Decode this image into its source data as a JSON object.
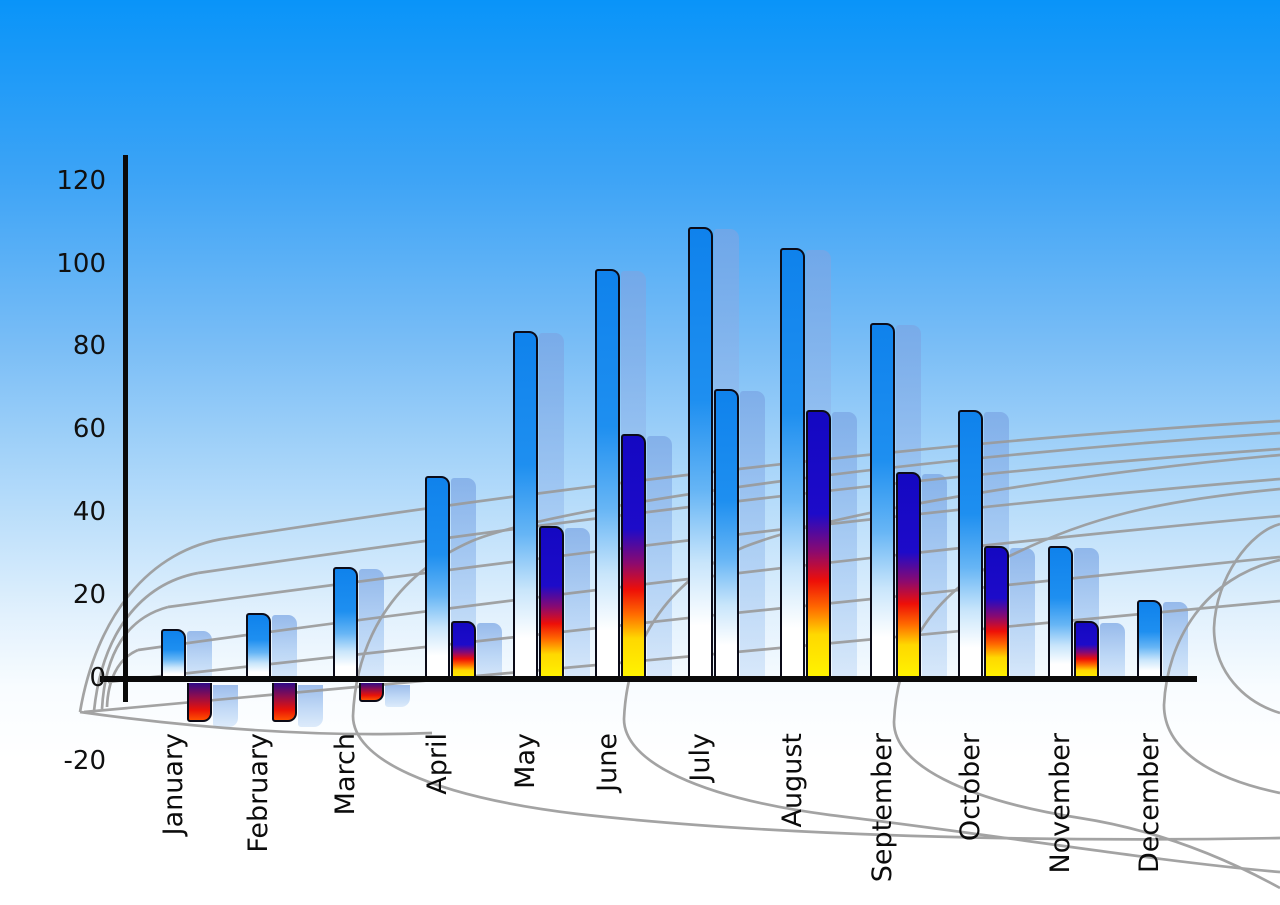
{
  "chart_data": {
    "type": "bar",
    "title": "",
    "xlabel": "",
    "ylabel": "",
    "categories": [
      "January",
      "February",
      "March",
      "April",
      "May",
      "June",
      "July",
      "August",
      "September",
      "October",
      "November",
      "December"
    ],
    "series": [
      {
        "name": "series-1-blue-bars",
        "values": [
          12,
          16,
          27,
          49,
          84,
          99,
          109,
          104,
          86,
          65,
          32,
          19
        ],
        "color": "#1e8ff0"
      },
      {
        "name": "series-2-heat-bars",
        "values": [
          -10,
          -10,
          -5,
          14,
          37,
          59,
          70,
          65,
          50,
          32,
          14,
          null
        ],
        "color": "navy-red-yellow gradient"
      }
    ],
    "series2_styles": [
      "heat-negative",
      "heat-negative",
      "heat-negative",
      "heat",
      "heat",
      "heat",
      "blue",
      "heat",
      "heat",
      "heat",
      "heat",
      null
    ],
    "ylim": [
      -20,
      120
    ],
    "yticks": [
      120,
      100,
      80,
      60,
      40,
      20,
      0,
      -20
    ],
    "grid": "decorative curved perspective grid behind bars",
    "legend_position": "none",
    "x_labels_rotation_degrees": 90,
    "bars_have_offset_translucent_shadows": true
  },
  "colors": {
    "sky_top": "#0994f9",
    "sky_bottom": "#ffffff",
    "axis": "#0a0a0a",
    "grid_line": "#9a9a9a",
    "blue_bar_top": "#1e8ff0",
    "heat_bar_navy": "#1408c2",
    "heat_bar_red": "#ee0f08",
    "heat_bar_yellow": "#fff600",
    "shadow_bar": "#9bc1f0"
  }
}
